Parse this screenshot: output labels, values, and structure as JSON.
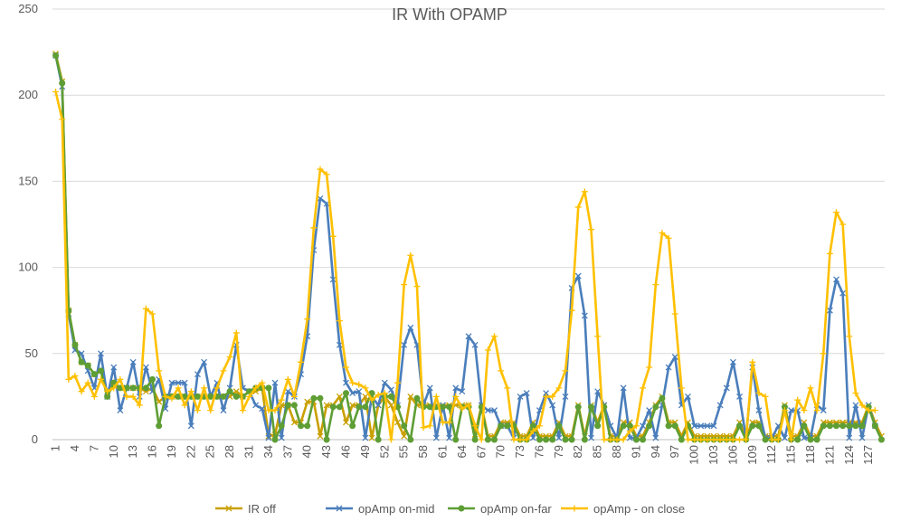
{
  "chart_data": {
    "type": "line",
    "title": "IR With OPAMP",
    "xlabel": "",
    "ylabel": "",
    "ylim": [
      0,
      250
    ],
    "yticks": [
      0,
      50,
      100,
      150,
      200,
      250
    ],
    "xlim": [
      1,
      128
    ],
    "xticks": [
      1,
      4,
      7,
      10,
      13,
      16,
      19,
      22,
      25,
      28,
      31,
      34,
      37,
      40,
      43,
      46,
      49,
      52,
      55,
      58,
      61,
      64,
      67,
      70,
      73,
      76,
      79,
      82,
      85,
      88,
      91,
      94,
      97,
      100,
      103,
      106,
      109,
      112,
      115,
      118,
      121,
      124,
      127
    ],
    "grid": true,
    "legend_position": "bottom",
    "series": [
      {
        "name": "IR off",
        "color": "#C9A000",
        "marker": "x",
        "values": [
          224,
          208,
          75,
          55,
          45,
          43,
          38,
          40,
          25,
          33,
          30,
          30,
          30,
          30,
          28,
          30,
          22,
          25,
          25,
          25,
          25,
          25,
          25,
          25,
          25,
          25,
          25,
          25,
          28,
          25,
          28,
          28,
          30,
          2,
          3,
          20,
          20,
          10,
          10,
          22,
          22,
          2,
          20,
          20,
          25,
          10,
          20,
          20,
          25,
          1,
          20,
          25,
          20,
          10,
          2,
          25,
          20,
          20,
          20,
          20,
          20,
          20,
          20,
          20,
          20,
          3,
          20,
          2,
          2,
          10,
          10,
          10,
          2,
          2,
          10,
          2,
          2,
          2,
          10,
          2,
          2,
          20,
          2,
          20,
          10,
          20,
          2,
          2,
          10,
          10,
          2,
          2,
          10,
          20,
          25,
          10,
          10,
          2,
          10,
          2,
          2,
          2,
          2,
          2,
          2,
          2,
          10,
          2,
          10,
          10,
          2,
          2,
          2,
          20,
          2,
          2,
          10,
          2,
          2,
          10,
          10,
          10,
          10,
          10,
          10,
          10,
          20,
          10,
          2
        ]
      },
      {
        "name": "opAmp on-mid",
        "color": "#4A7EBB",
        "marker": "x",
        "values": [
          223,
          205,
          73,
          52,
          50,
          40,
          30,
          50,
          25,
          42,
          17,
          30,
          45,
          25,
          42,
          28,
          35,
          18,
          33,
          33,
          33,
          8,
          38,
          45,
          25,
          33,
          17,
          30,
          55,
          30,
          28,
          20,
          18,
          1,
          33,
          1,
          28,
          25,
          38,
          60,
          110,
          140,
          137,
          93,
          55,
          33,
          27,
          28,
          1,
          25,
          20,
          33,
          29,
          20,
          55,
          65,
          55,
          20,
          30,
          1,
          20,
          1,
          30,
          28,
          60,
          55,
          20,
          17,
          17,
          8,
          8,
          1,
          25,
          27,
          1,
          17,
          27,
          20,
          1,
          25,
          88,
          95,
          72,
          1,
          28,
          20,
          8,
          1,
          30,
          1,
          1,
          8,
          17,
          1,
          20,
          42,
          48,
          20,
          25,
          8,
          8,
          8,
          8,
          20,
          30,
          45,
          25,
          1,
          42,
          17,
          1,
          1,
          8,
          1,
          17,
          17,
          1,
          1,
          20,
          17,
          75,
          93,
          85,
          1,
          20,
          1,
          20,
          8
        ]
      },
      {
        "name": "opAmp on-far",
        "color": "#5E9E34",
        "marker": "circle",
        "values": [
          223,
          207,
          75,
          55,
          45,
          43,
          38,
          40,
          25,
          33,
          30,
          30,
          30,
          30,
          30,
          35,
          8,
          25,
          25,
          25,
          25,
          25,
          25,
          25,
          25,
          25,
          25,
          28,
          25,
          25,
          28,
          30,
          30,
          30,
          0,
          8,
          20,
          20,
          8,
          8,
          24,
          24,
          0,
          19,
          19,
          27,
          8,
          19,
          19,
          27,
          0,
          25,
          25,
          19,
          8,
          0,
          24,
          19,
          19,
          19,
          19,
          19,
          0,
          19,
          19,
          0,
          19,
          0,
          0,
          8,
          8,
          8,
          0,
          0,
          8,
          0,
          0,
          0,
          8,
          0,
          0,
          19,
          0,
          19,
          8,
          19,
          0,
          0,
          8,
          8,
          0,
          0,
          8,
          19,
          24,
          8,
          8,
          0,
          8,
          0,
          0,
          0,
          0,
          0,
          0,
          0,
          8,
          0,
          8,
          8,
          0,
          0,
          0,
          19,
          0,
          0,
          8,
          0,
          0,
          8,
          8,
          8,
          8,
          8,
          8,
          8,
          19,
          8,
          0
        ]
      },
      {
        "name": "opAmp - on close",
        "color": "#FFC000",
        "marker": "plus",
        "values": [
          202,
          186,
          35,
          37,
          28,
          33,
          25,
          35,
          28,
          30,
          35,
          25,
          25,
          20,
          76,
          73,
          40,
          25,
          24,
          30,
          20,
          28,
          17,
          30,
          17,
          30,
          40,
          48,
          62,
          17,
          25,
          30,
          33,
          17,
          17,
          23,
          35,
          25,
          45,
          70,
          123,
          157,
          154,
          118,
          69,
          42,
          33,
          32,
          30,
          23,
          26,
          27,
          0,
          33,
          90,
          107,
          89,
          7,
          8,
          25,
          10,
          10,
          25,
          18,
          20,
          8,
          0,
          52,
          60,
          40,
          30,
          0,
          0,
          0,
          5,
          8,
          25,
          25,
          30,
          40,
          75,
          135,
          144,
          122,
          60,
          0,
          0,
          0,
          0,
          5,
          8,
          30,
          42,
          90,
          120,
          117,
          73,
          30,
          0,
          0,
          0,
          0,
          0,
          0,
          0,
          0,
          0,
          0,
          45,
          27,
          25,
          0,
          0,
          17,
          0,
          23,
          17,
          30,
          17,
          50,
          108,
          132,
          125,
          60,
          27,
          20,
          17,
          17
        ]
      }
    ]
  }
}
